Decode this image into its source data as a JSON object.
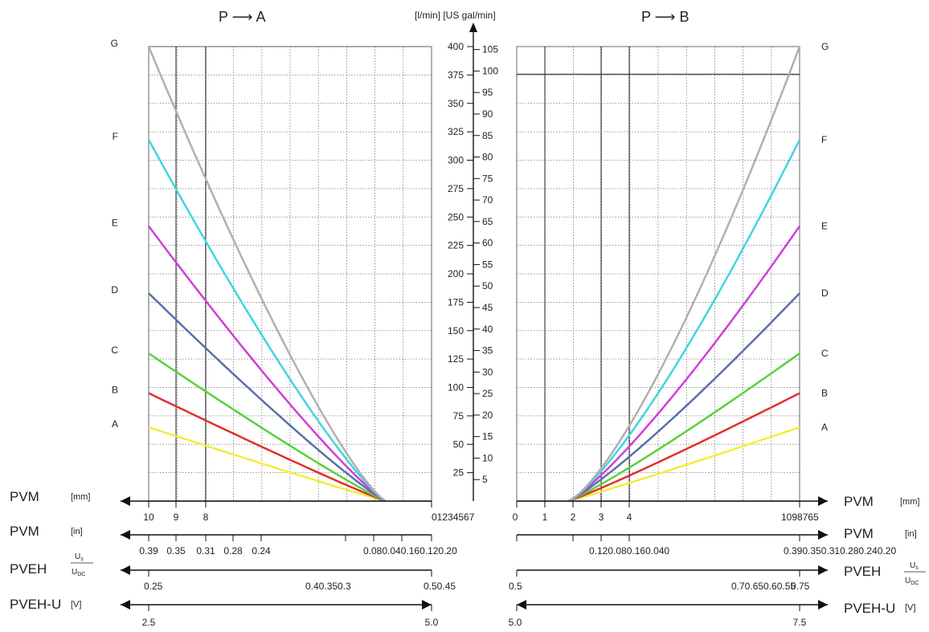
{
  "chart_data": {
    "type": "line",
    "center_axis": {
      "unit_label": "[l/min] [US gal/min]",
      "left_ticks": [
        25,
        50,
        75,
        100,
        125,
        150,
        175,
        200,
        225,
        250,
        275,
        300,
        325,
        350,
        375,
        400
      ],
      "right_ticks": [
        5,
        10,
        15,
        20,
        25,
        30,
        35,
        40,
        45,
        50,
        55,
        60,
        65,
        70,
        75,
        80,
        85,
        90,
        95,
        100,
        105
      ],
      "ylim_lmin": [
        0,
        400
      ]
    },
    "panels": [
      {
        "title": "P ⟶ A",
        "curve_labels": [
          "A",
          "B",
          "C",
          "D",
          "E",
          "F",
          "G"
        ],
        "pvm_mm_ticks": [
          "10",
          "9",
          "8",
          "01234567"
        ],
        "pvm_in_ticks": [
          "0.39",
          "0.35",
          "0.31",
          "0.28",
          "0.24",
          "0.080.040.160.120.20"
        ],
        "pveh_ticks": [
          "0.25",
          "0.40.350.3",
          "0.50.45"
        ],
        "pvehu_ticks": [
          "2.5",
          "5.0"
        ]
      },
      {
        "title": "P ⟶ B",
        "curve_labels": [
          "G",
          "F",
          "E",
          "D",
          "C",
          "B",
          "A"
        ],
        "pvm_mm_ticks": [
          "0",
          "1",
          "2",
          "3",
          "4",
          "1098765"
        ],
        "pvm_in_ticks": [
          "0.120.080.160.040",
          "0.390.350.310.280.240.20"
        ],
        "pveh_ticks": [
          "0.5",
          "0.70.650.60.55",
          "0.75"
        ],
        "pvehu_ticks": [
          "5.0",
          "7.5"
        ]
      }
    ],
    "side_labels": {
      "pvm": "PVM",
      "mm": "[mm]",
      "in": "[in]",
      "pveh": "PVEH",
      "us": "U",
      "us_sub": "s",
      "udc": "U",
      "udc_sub": "DC",
      "pvehu": "PVEH-U",
      "v": "[V]"
    },
    "series": [
      {
        "label": "A",
        "color": "#f5ec3b",
        "value_lmin": 65
      },
      {
        "label": "B",
        "color": "#e0302a",
        "value_lmin": 95
      },
      {
        "label": "C",
        "color": "#59d13c",
        "value_lmin": 130
      },
      {
        "label": "D",
        "color": "#5a6fa6",
        "value_lmin": 183
      },
      {
        "label": "E",
        "color": "#cf3fd8",
        "value_lmin": 242
      },
      {
        "label": "F",
        "color": "#3fd6dd",
        "value_lmin": 318
      },
      {
        "label": "G",
        "color": "#b0b0b0",
        "value_lmin": 400
      }
    ]
  }
}
